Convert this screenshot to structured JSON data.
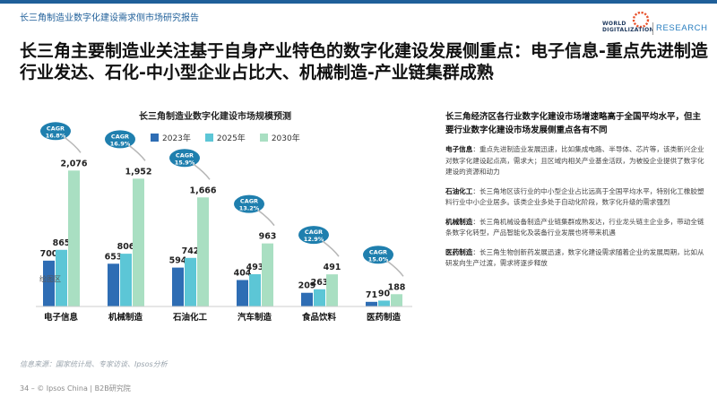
{
  "header": {
    "report_name": "长三角制造业数字化建设需求侧市场研究报告",
    "logo_line1": "WORLD",
    "logo_line2": "DIGITALIZATION",
    "logo_research": "RESEARCH"
  },
  "headline": "长三角主要制造业关注基于自身产业特色的数字化建设发展侧重点：电子信息-重点先进制造行业发达、石化-中小型企业占比大、机械制造-产业链集群成熟",
  "colors": {
    "s2023": "#2e6db4",
    "s2025": "#5cc6d6",
    "s2030": "#a9dfc2",
    "cagr": "#1f7fae"
  },
  "chart_data": {
    "type": "bar",
    "title": "长三角制造业数字化建设市场规模预测",
    "categories": [
      "电子信息",
      "机械制造",
      "石油化工",
      "汽车制造",
      "食品饮料",
      "医药制造"
    ],
    "series": [
      {
        "name": "2023年",
        "values": [
          700,
          653,
          594,
          404,
          209,
          71
        ]
      },
      {
        "name": "2025年",
        "values": [
          865,
          806,
          742,
          493,
          263,
          90
        ]
      },
      {
        "name": "2030年",
        "values": [
          2076,
          1952,
          1666,
          963,
          491,
          188
        ]
      }
    ],
    "cagr_labels": [
      "CAGR\n16.8%",
      "CAGR\n16.9%",
      "CAGR\n15.9%",
      "CAGR\n13.2%",
      "CAGR\n12.9%",
      "CAGR\n15.0%"
    ],
    "annotation": "绘图区",
    "ylim": [
      0,
      2200
    ],
    "grid": false
  },
  "right_panel": {
    "heading": "长三角经济区各行业数字化建设市场增速略高于全国平均水平，但主要行业数字化建设市场发展侧重点各有不同",
    "items": [
      {
        "label": "电子信息",
        "text": "：重点先进制造业发展迅速，比如集成电路、半导体、芯片等，该类新兴企业对数字化建设起点高，需求大；且区域内相关产业基金活跃，为被投企业提供了数字化建设的资源和动力"
      },
      {
        "label": "石油化工",
        "text": "：长三角地区该行业的中小型企业占比远高于全国平均水平，特别化工橡胶塑料行业中小企业居多。该类企业多处于自动化阶段，数字化升级的需求强烈"
      },
      {
        "label": "机械制造",
        "text": "：长三角机械设备制造产业链集群成熟发达，行业龙头链主企业多，带动全链条数字化转型，产品智能化及装备行业发展也将带来机遇"
      },
      {
        "label": "医药制造",
        "text": "：长三角生物创新药发展迅速，数字化建设需求随着企业的发展周期，比如从研发向生产过渡，需求将逐步释放"
      }
    ]
  },
  "footnote": "信息来源：国家统计局、专家访谈、Ipsos分析",
  "page_footer": "34 – © Ipsos China | B2B研究院"
}
